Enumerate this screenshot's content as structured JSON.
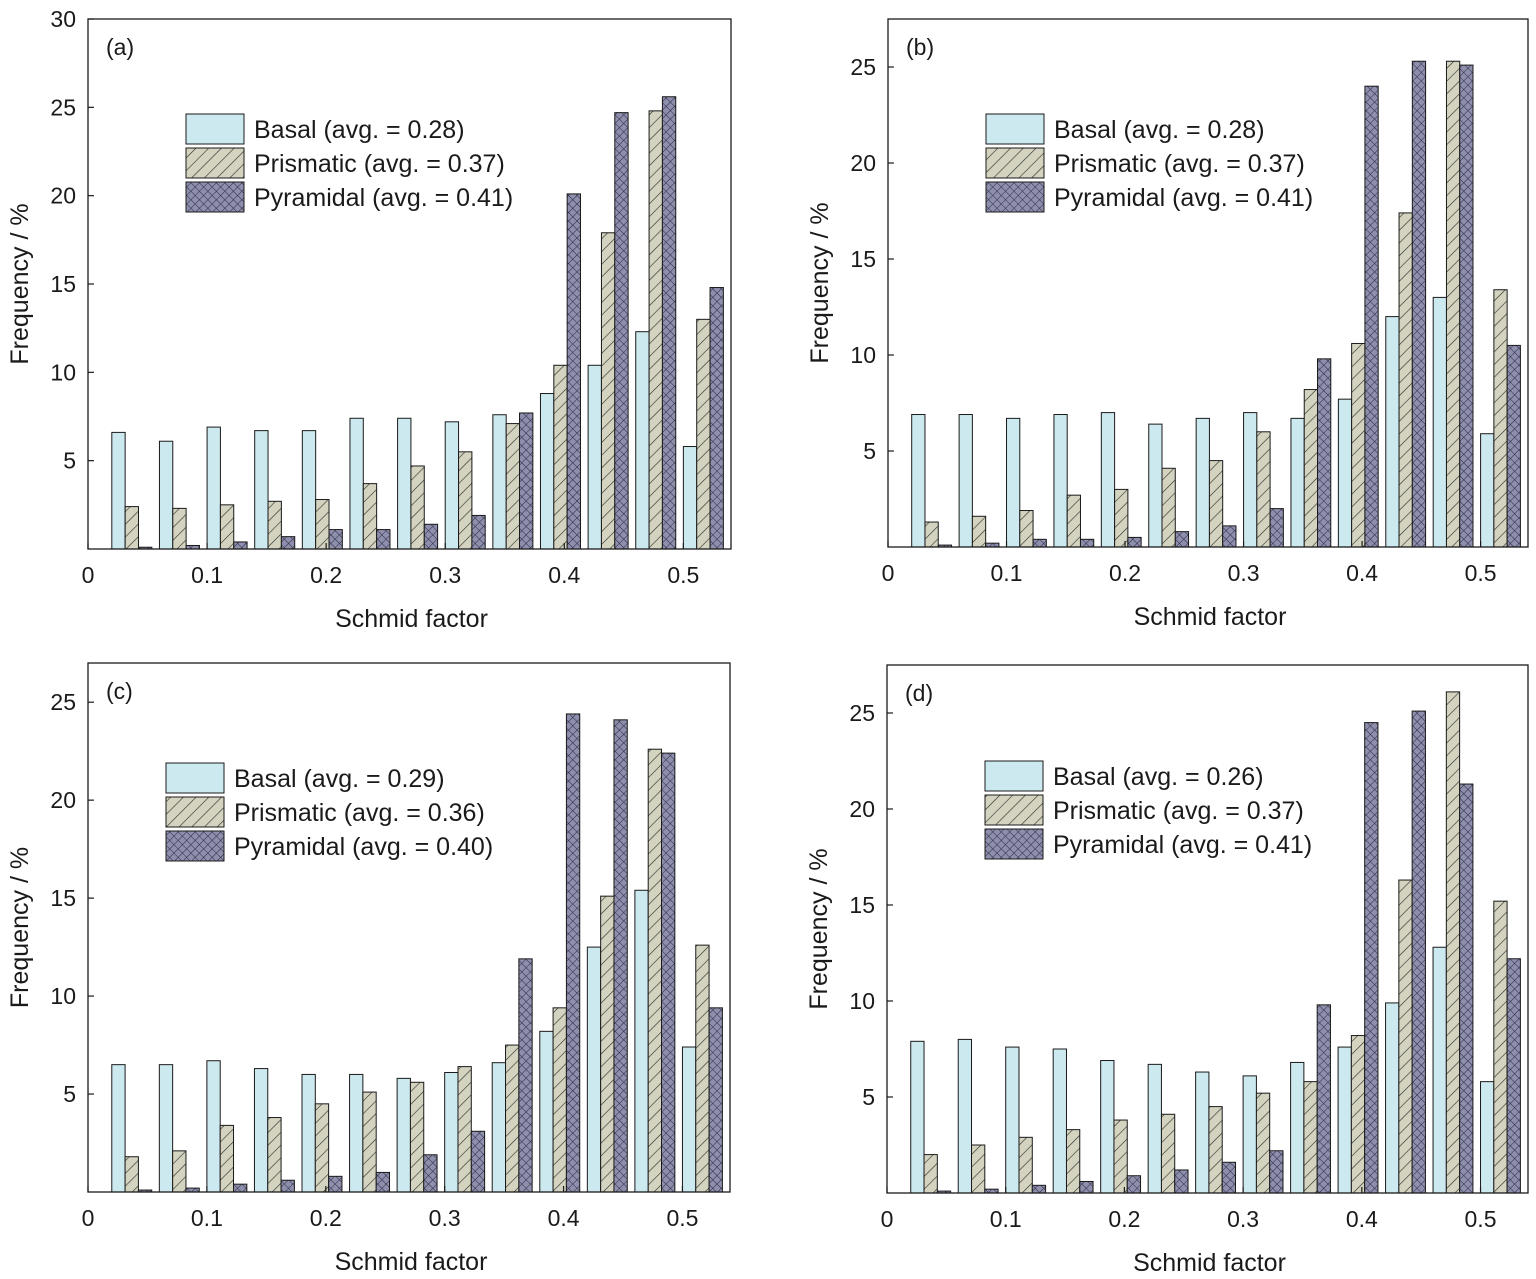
{
  "colors": {
    "basal": "#cce9ef",
    "prismatic": "#d3d3bf",
    "pyramidal": "#8e8ead",
    "stroke": "#1a1a1a"
  },
  "chart_data": [
    {
      "type": "bar",
      "panel_label": "(a)",
      "xlabel": "Schmid factor",
      "ylabel": "Frequency / %",
      "xlim": [
        0,
        0.54
      ],
      "ylim": [
        0,
        30
      ],
      "xticks": [
        0,
        0.1,
        0.2,
        0.3,
        0.4,
        0.5
      ],
      "xtick_labels": [
        "0",
        "0.1",
        "0.2",
        "0.3",
        "0.4",
        "0.5"
      ],
      "yticks": [
        5,
        10,
        15,
        20,
        25,
        30
      ],
      "ytick_labels": [
        "5",
        "10",
        "15",
        "20",
        "25",
        "30"
      ],
      "legend_position": "upper-left",
      "series": [
        {
          "name": "Basal (avg. = 0.28)",
          "values": [
            6.6,
            6.1,
            6.9,
            6.7,
            6.7,
            7.4,
            7.4,
            7.2,
            7.6,
            8.8,
            10.4,
            12.3,
            5.8
          ]
        },
        {
          "name": "Prismatic (avg. = 0.37)",
          "values": [
            2.4,
            2.3,
            2.5,
            2.7,
            2.8,
            3.7,
            4.7,
            5.5,
            7.1,
            10.4,
            17.9,
            24.8,
            13.0
          ]
        },
        {
          "name": "Pyramidal (avg. = 0.41)",
          "values": [
            0.1,
            0.2,
            0.4,
            0.7,
            1.1,
            1.1,
            1.4,
            1.9,
            7.7,
            20.1,
            24.7,
            25.6,
            14.8
          ]
        }
      ]
    },
    {
      "type": "bar",
      "panel_label": "(b)",
      "xlabel": "Schmid factor",
      "ylabel": "Frequency / %",
      "xlim": [
        0,
        0.54
      ],
      "ylim": [
        0,
        27.5
      ],
      "xticks": [
        0,
        0.1,
        0.2,
        0.3,
        0.4,
        0.5
      ],
      "xtick_labels": [
        "0",
        "0.1",
        "0.2",
        "0.3",
        "0.4",
        "0.5"
      ],
      "yticks": [
        5,
        10,
        15,
        20,
        25
      ],
      "ytick_labels": [
        "5",
        "10",
        "15",
        "20",
        "25"
      ],
      "legend_position": "upper-left",
      "series": [
        {
          "name": "Basal (avg. = 0.28)",
          "values": [
            6.9,
            6.9,
            6.7,
            6.9,
            7.0,
            6.4,
            6.7,
            7.0,
            6.7,
            7.7,
            12.0,
            13.0,
            5.9
          ]
        },
        {
          "name": "Prismatic (avg. = 0.37)",
          "values": [
            1.3,
            1.6,
            1.9,
            2.7,
            3.0,
            4.1,
            4.5,
            6.0,
            8.2,
            10.6,
            17.4,
            25.3,
            13.4
          ]
        },
        {
          "name": "Pyramidal (avg. = 0.41)",
          "values": [
            0.1,
            0.2,
            0.4,
            0.4,
            0.5,
            0.8,
            1.1,
            2.0,
            9.8,
            24.0,
            25.3,
            25.1,
            10.5
          ]
        }
      ]
    },
    {
      "type": "bar",
      "panel_label": "(c)",
      "xlabel": "Schmid factor",
      "ylabel": "Frequency / %",
      "xlim": [
        0,
        0.54
      ],
      "ylim": [
        0,
        27
      ],
      "xticks": [
        0,
        0.1,
        0.2,
        0.3,
        0.4,
        0.5
      ],
      "xtick_labels": [
        "0",
        "0.1",
        "0.2",
        "0.3",
        "0.4",
        "0.5"
      ],
      "yticks": [
        5,
        10,
        15,
        20,
        25
      ],
      "ytick_labels": [
        "5",
        "10",
        "15",
        "20",
        "25"
      ],
      "legend_position": "upper-left",
      "series": [
        {
          "name": "Basal (avg. = 0.29)",
          "values": [
            6.5,
            6.5,
            6.7,
            6.3,
            6.0,
            6.0,
            5.8,
            6.1,
            6.6,
            8.2,
            12.5,
            15.4,
            7.4
          ]
        },
        {
          "name": "Prismatic (avg. = 0.36)",
          "values": [
            1.8,
            2.1,
            3.4,
            3.8,
            4.5,
            5.1,
            5.6,
            6.4,
            7.5,
            9.4,
            15.1,
            22.6,
            12.6
          ]
        },
        {
          "name": "Pyramidal (avg. = 0.40)",
          "values": [
            0.1,
            0.2,
            0.4,
            0.6,
            0.8,
            1.0,
            1.9,
            3.1,
            11.9,
            24.4,
            24.1,
            22.4,
            9.4
          ]
        }
      ]
    },
    {
      "type": "bar",
      "panel_label": "(d)",
      "xlabel": "Schmid factor",
      "ylabel": "Frequency / %",
      "xlim": [
        0,
        0.54
      ],
      "ylim": [
        0,
        27.5
      ],
      "xticks": [
        0,
        0.1,
        0.2,
        0.3,
        0.4,
        0.5
      ],
      "xtick_labels": [
        "0",
        "0.1",
        "0.2",
        "0.3",
        "0.4",
        "0.5"
      ],
      "yticks": [
        5,
        10,
        15,
        20,
        25
      ],
      "ytick_labels": [
        "5",
        "10",
        "15",
        "20",
        "25"
      ],
      "legend_position": "upper-left",
      "series": [
        {
          "name": "Basal (avg. = 0.26)",
          "values": [
            7.9,
            8.0,
            7.6,
            7.5,
            6.9,
            6.7,
            6.3,
            6.1,
            6.8,
            7.6,
            9.9,
            12.8,
            5.8
          ]
        },
        {
          "name": "Prismatic (avg. = 0.37)",
          "values": [
            2.0,
            2.5,
            2.9,
            3.3,
            3.8,
            4.1,
            4.5,
            5.2,
            5.8,
            8.2,
            16.3,
            26.1,
            15.2
          ]
        },
        {
          "name": "Pyramidal (avg. = 0.41)",
          "values": [
            0.1,
            0.2,
            0.4,
            0.6,
            0.9,
            1.2,
            1.6,
            2.2,
            9.8,
            24.5,
            25.1,
            21.3,
            12.2
          ]
        }
      ]
    }
  ]
}
